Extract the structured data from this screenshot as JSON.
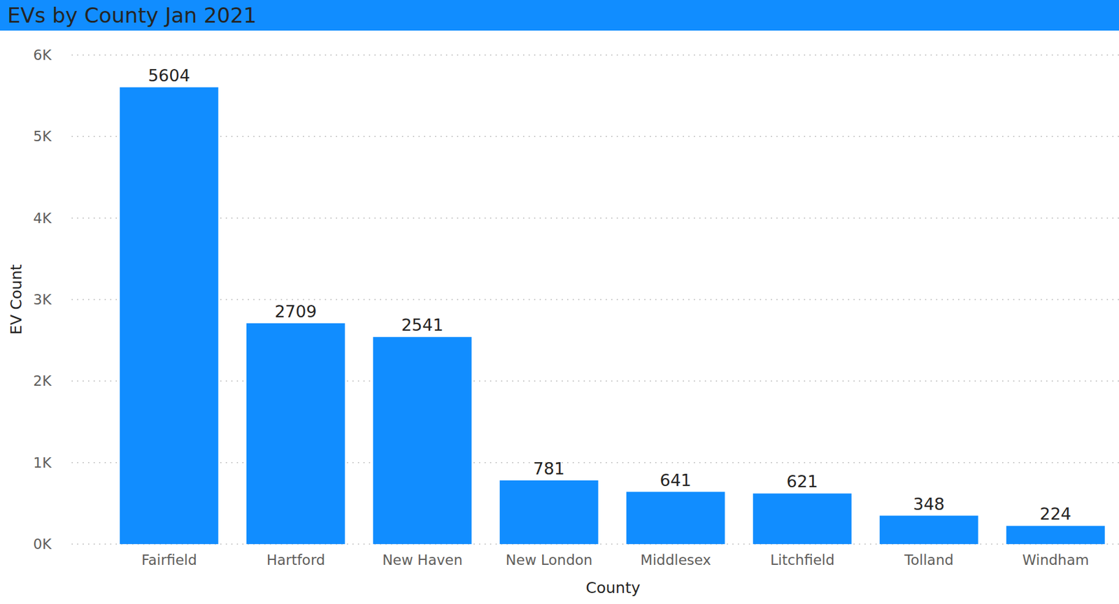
{
  "chart_data": {
    "type": "bar",
    "title": "EVs by County Jan 2021",
    "x_label": "County",
    "y_label": "EV Count",
    "categories": [
      "Fairfield",
      "Hartford",
      "New Haven",
      "New London",
      "Middlesex",
      "Litchfield",
      "Tolland",
      "Windham"
    ],
    "values": [
      5604,
      2709,
      2541,
      781,
      641,
      621,
      348,
      224
    ],
    "color": "#118DFF",
    "ylim": [
      0,
      6000
    ],
    "yticks": [
      {
        "value": 0,
        "label": "0K"
      },
      {
        "value": 1000,
        "label": "1K"
      },
      {
        "value": 2000,
        "label": "2K"
      },
      {
        "value": 3000,
        "label": "3K"
      },
      {
        "value": 4000,
        "label": "4K"
      },
      {
        "value": 5000,
        "label": "5K"
      },
      {
        "value": 6000,
        "label": "6K"
      }
    ],
    "grid": true,
    "data_labels": true
  }
}
